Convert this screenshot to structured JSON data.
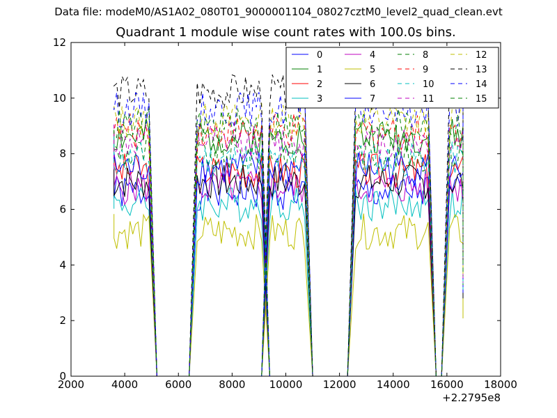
{
  "figure": {
    "suptitle": "Data file: modeM0/AS1A02_080T01_9000001104_08027cztM0_level2_quad_clean.evt",
    "x_offset_label": "+2.2795e8"
  },
  "chart_data": {
    "type": "line",
    "title": "Quadrant 1 module wise count rates with 100.0s bins.",
    "xlabel": "",
    "ylabel": "",
    "xlim": [
      2000,
      18000
    ],
    "ylim": [
      0,
      12
    ],
    "xticks": [
      2000,
      4000,
      6000,
      8000,
      10000,
      12000,
      14000,
      16000,
      18000
    ],
    "yticks": [
      0,
      2,
      4,
      6,
      8,
      10,
      12
    ],
    "grid": false,
    "legend_position": "top-right",
    "legend_columns": 4,
    "segments": [
      {
        "start": 3600,
        "end": 4900
      },
      {
        "start": 6700,
        "end": 9100
      },
      {
        "start": 9400,
        "end": 10700
      },
      {
        "start": 12600,
        "end": 15300
      },
      {
        "start": 16100,
        "end": 16600
      }
    ],
    "series": [
      {
        "name": "0",
        "color": "#0000ff",
        "dash": false,
        "level": 6.6
      },
      {
        "name": "1",
        "color": "#007f00",
        "dash": false,
        "level": 8.6
      },
      {
        "name": "2",
        "color": "#ff0000",
        "dash": false,
        "level": 7.4
      },
      {
        "name": "3",
        "color": "#00bfbf",
        "dash": false,
        "level": 6.2
      },
      {
        "name": "4",
        "color": "#bf00bf",
        "dash": false,
        "level": 6.8
      },
      {
        "name": "5",
        "color": "#bfbf00",
        "dash": false,
        "level": 5.2
      },
      {
        "name": "6",
        "color": "#000000",
        "dash": false,
        "level": 7.0
      },
      {
        "name": "7",
        "color": "#0000ff",
        "dash": false,
        "level": 7.5
      },
      {
        "name": "8",
        "color": "#007f00",
        "dash": true,
        "level": 8.0
      },
      {
        "name": "9",
        "color": "#ff0000",
        "dash": true,
        "level": 8.8
      },
      {
        "name": "10",
        "color": "#00bfbf",
        "dash": true,
        "level": 7.8
      },
      {
        "name": "11",
        "color": "#bf00bf",
        "dash": true,
        "level": 8.4
      },
      {
        "name": "12",
        "color": "#bfbf00",
        "dash": true,
        "level": 9.2
      },
      {
        "name": "13",
        "color": "#000000",
        "dash": true,
        "level": 10.2
      },
      {
        "name": "14",
        "color": "#0000ff",
        "dash": true,
        "level": 9.6
      },
      {
        "name": "15",
        "color": "#007f00",
        "dash": true,
        "level": 9.0
      }
    ]
  }
}
